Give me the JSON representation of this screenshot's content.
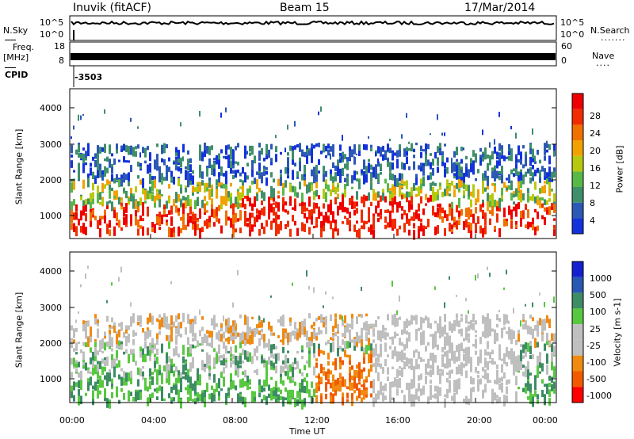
{
  "header": {
    "station": "Inuvik (fitACF)",
    "beam": "Beam 15",
    "date": "17/Mar/2014"
  },
  "top_panels": {
    "nsky_label": "N.Sky",
    "nsearch_label": "N.Search",
    "nsky_ticks": [
      "10^5",
      "10^0"
    ],
    "nsearch_ticks": [
      "10^5",
      "10^0"
    ],
    "freq_label_1": "Freq.",
    "freq_label_2": "[MHz]",
    "freq_ticks": [
      "18",
      "8"
    ],
    "nave_label": "Nave",
    "nave_ticks": [
      "60",
      "0"
    ],
    "cpid_label": "CPID",
    "cpid_value": "-3503"
  },
  "colors": {
    "power": [
      "#1432dc",
      "#2c58b6",
      "#3e8f6a",
      "#58b848",
      "#b7c90e",
      "#f2a200",
      "#f07000",
      "#f02c00",
      "#ee0000"
    ],
    "velocity": [
      "#ff0000",
      "#f25a00",
      "#f08a10",
      "#bfbfbf",
      "#bfbfbf",
      "#58c840",
      "#3c8c64",
      "#2858b4",
      "#1420d0"
    ]
  },
  "chart_data": [
    {
      "type": "heatmap",
      "panel": "power",
      "ylabel": "Slant Range [km]",
      "ylim": [
        180,
        4600
      ],
      "yticks": [
        "4000",
        "3000",
        "2000",
        "1000"
      ],
      "xlim": [
        0,
        24
      ],
      "colorbar": {
        "label": "Power [dB]",
        "range": [
          0,
          32
        ],
        "ticks": [
          "28",
          "24",
          "20",
          "16",
          "12",
          "8",
          "4"
        ]
      }
    },
    {
      "type": "heatmap",
      "panel": "velocity",
      "ylabel": "Slant Range [km]",
      "xlabel": "Time UT",
      "ylim": [
        180,
        4600
      ],
      "yticks": [
        "4000",
        "3000",
        "2000",
        "1000"
      ],
      "xlim": [
        0,
        24
      ],
      "xticks": [
        "00:00",
        "04:00",
        "08:00",
        "12:00",
        "16:00",
        "20:00",
        "00:00"
      ],
      "colorbar": {
        "label": "Velocity [m s-1]",
        "ticks": [
          "1000",
          "500",
          "100",
          "25",
          "-25",
          "-100",
          "-500",
          "-1000"
        ]
      }
    }
  ]
}
